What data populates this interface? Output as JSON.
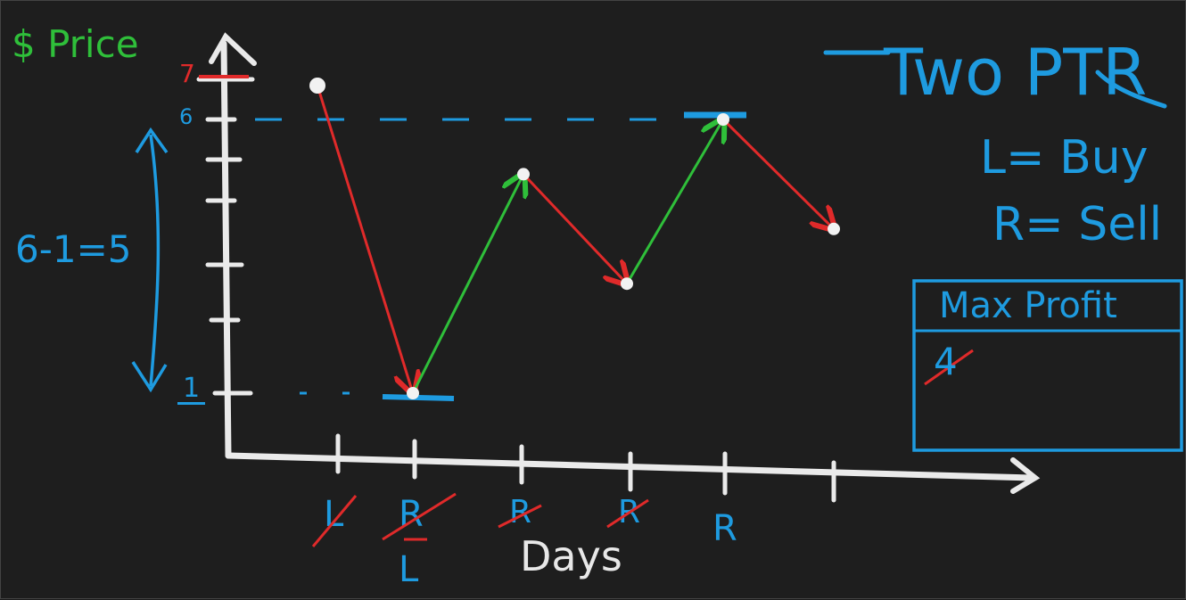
{
  "y_axis_label": "$ Price",
  "x_axis_label": "Days",
  "title": "Two PTR",
  "legend": {
    "left": "L= Buy",
    "right": "R= Sell"
  },
  "range_note": "6-1=5",
  "max_profit": {
    "header": "Max Profit",
    "struck_value": "4"
  },
  "tick_labels": {
    "top": "7",
    "high": "6",
    "low": "1"
  },
  "day_labels": [
    {
      "text": "L",
      "struck": true
    },
    {
      "text": "R",
      "struck": true,
      "below": "L"
    },
    {
      "text": "R",
      "struck": true
    },
    {
      "text": "R",
      "struck": true
    },
    {
      "text": "R",
      "struck": false
    }
  ],
  "chart_data": {
    "type": "line",
    "x": [
      1,
      2,
      3,
      4,
      5,
      6
    ],
    "values": [
      7,
      1,
      5,
      3,
      6,
      4
    ],
    "ylabel": "$ Price",
    "xlabel": "Days",
    "best_buy": 1,
    "best_sell": 6
  },
  "colors": {
    "blue": "#1e9be0",
    "green": "#2fbf3a",
    "red": "#e02a2a",
    "white": "#e8e8e8"
  }
}
